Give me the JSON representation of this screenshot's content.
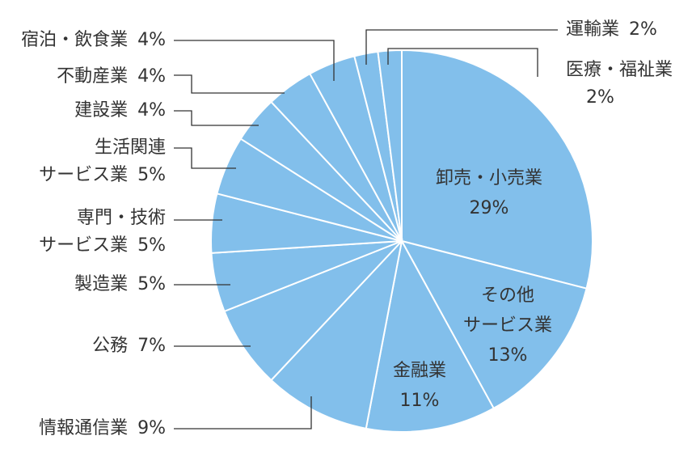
{
  "chart_data": {
    "type": "pie",
    "categories": [
      "卸売・小売業",
      "その他\nサービス業",
      "金融業",
      "情報通信業",
      "公務",
      "製造業",
      "専門・技術\nサービス業",
      "生活関連\nサービス業",
      "建設業",
      "不動産業",
      "宿泊・飲食業",
      "運輸業",
      "医療・福祉業"
    ],
    "values": [
      29,
      13,
      11,
      9,
      7,
      5,
      5,
      5,
      4,
      4,
      4,
      2,
      2
    ],
    "value_labels": [
      "29%",
      "13%",
      "11%",
      "9%",
      "7%",
      "5%",
      "5%",
      "5%",
      "4%",
      "4%",
      "4%",
      "2%",
      "2%"
    ],
    "color": "#82bfeb"
  }
}
